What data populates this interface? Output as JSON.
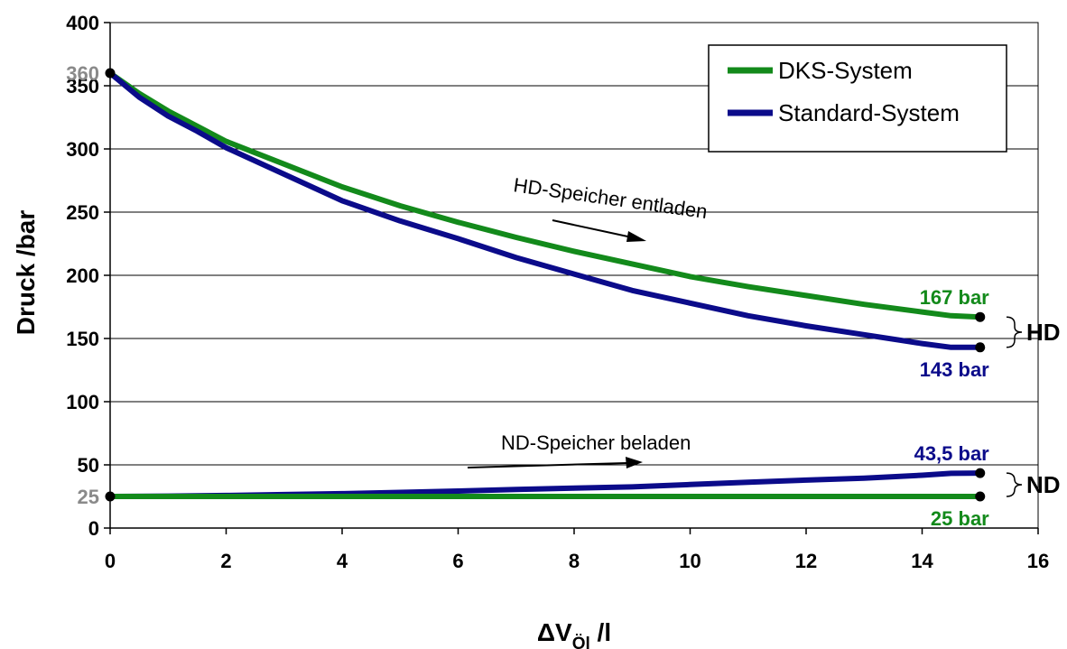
{
  "chart_data": {
    "type": "line",
    "xlabel": "ΔV",
    "xlabel_sub": "Öl",
    "xlabel_unit": " /l",
    "ylabel": "Druck /bar",
    "xlim": [
      0,
      16
    ],
    "ylim": [
      0,
      400
    ],
    "x_ticks": [
      "0",
      "2",
      "4",
      "6",
      "8",
      "10",
      "12",
      "14",
      "16"
    ],
    "y_ticks": [
      "0",
      "50",
      "100",
      "150",
      "200",
      "250",
      "300",
      "350",
      "400"
    ],
    "y_special_ticks": [
      {
        "value": 360,
        "label": "360"
      },
      {
        "value": 25,
        "label": "25"
      }
    ],
    "grid": "horizontal",
    "legend_position": "top-right",
    "legend": [
      {
        "label": "DKS-System",
        "color": "#138a1b"
      },
      {
        "label": "Standard-System",
        "color": "#0b0b8a"
      }
    ],
    "series": [
      {
        "name": "DKS-System",
        "group": "HD",
        "color": "#138a1b",
        "x": [
          0,
          0.5,
          1,
          1.5,
          2,
          3,
          4,
          5,
          6,
          7,
          8,
          9,
          10,
          11,
          12,
          13,
          14,
          14.5,
          15
        ],
        "y": [
          360,
          344,
          330,
          318,
          306,
          288,
          270,
          255,
          242,
          230,
          219,
          209,
          199,
          191,
          184,
          177,
          171,
          168,
          167
        ]
      },
      {
        "name": "Standard-System",
        "group": "HD",
        "color": "#0b0b8a",
        "x": [
          0,
          0.5,
          1,
          1.5,
          2,
          3,
          4,
          5,
          6,
          7,
          8,
          9,
          10,
          11,
          12,
          13,
          14,
          14.5,
          15
        ],
        "y": [
          360,
          341,
          326,
          314,
          301,
          280,
          259,
          243,
          229,
          214,
          201,
          188,
          178,
          168,
          160,
          153,
          146,
          143,
          143
        ]
      },
      {
        "name": "Standard-System",
        "group": "ND",
        "color": "#0b0b8a",
        "x": [
          0,
          1,
          2,
          3,
          4,
          5,
          6,
          7,
          8,
          9,
          10,
          11,
          12,
          13,
          14,
          14.5,
          15
        ],
        "y": [
          25,
          25.3,
          25.8,
          26.5,
          27.2,
          28.2,
          29.3,
          30.5,
          31.6,
          32.6,
          34.4,
          36.2,
          37.9,
          39.4,
          41.8,
          43.3,
          43.5
        ]
      },
      {
        "name": "DKS-System",
        "group": "ND",
        "color": "#138a1b",
        "x": [
          0,
          15
        ],
        "y": [
          25,
          25
        ]
      }
    ],
    "endpoints": [
      {
        "x": 0,
        "y": 360
      },
      {
        "x": 0,
        "y": 25
      },
      {
        "x": 15,
        "y": 167
      },
      {
        "x": 15,
        "y": 143
      },
      {
        "x": 15,
        "y": 43.5
      },
      {
        "x": 15,
        "y": 25
      }
    ],
    "end_labels": [
      {
        "text": "167 bar",
        "color": "#138a1b",
        "x": 15,
        "y": 167,
        "place": "above"
      },
      {
        "text": "143 bar",
        "color": "#0b0b8a",
        "x": 15,
        "y": 143,
        "place": "below"
      },
      {
        "text": "43,5 bar",
        "color": "#0b0b8a",
        "x": 15,
        "y": 43.5,
        "place": "above"
      },
      {
        "text": "25 bar",
        "color": "#138a1b",
        "x": 15,
        "y": 25,
        "place": "below"
      }
    ],
    "annotations": [
      {
        "text": "HD-Speicher entladen"
      },
      {
        "text": "ND-Speicher beladen"
      }
    ],
    "brackets": [
      {
        "label": "HD",
        "y_top": 167,
        "y_bottom": 143
      },
      {
        "label": "ND",
        "y_top": 43.5,
        "y_bottom": 25
      }
    ]
  }
}
